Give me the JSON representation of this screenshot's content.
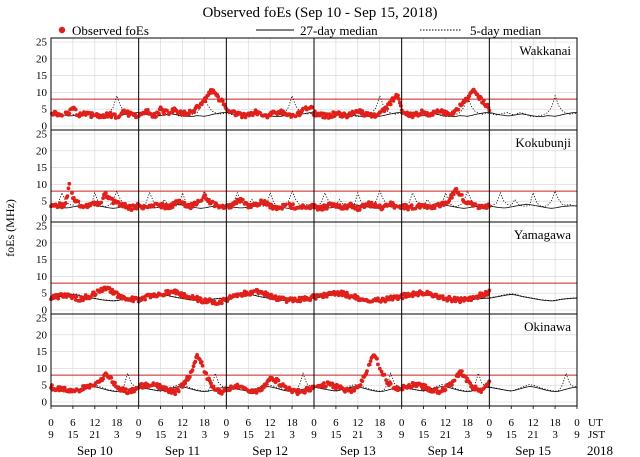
{
  "chart_data": {
    "type": "scatter",
    "title": "Observed foEs (Sep 10 - Sep 15, 2018)",
    "ylabel": "foEs (MHz)",
    "legend": {
      "placement": "top",
      "observed": "Observed foEs",
      "median27": "27-day median",
      "median5": "5-day median"
    },
    "ylim": [
      0,
      25
    ],
    "yticks": [
      "0",
      "5",
      "10",
      "15",
      "20",
      "25"
    ],
    "reference_line_mhz": 8,
    "colors": {
      "observed": "#e0201b",
      "reference": "#cc2222",
      "median": "#000000"
    },
    "x_axis": {
      "ut_label": "UT",
      "jst_label": "JST",
      "ut_ticks": [
        "0",
        "6",
        "12",
        "18",
        "0",
        "6",
        "12",
        "18",
        "0",
        "6",
        "12",
        "18",
        "0",
        "6",
        "12",
        "18",
        "0",
        "6",
        "12",
        "18",
        "0",
        "6",
        "12",
        "18",
        "0"
      ],
      "jst_ticks": [
        "9",
        "15",
        "21",
        "3",
        "9",
        "15",
        "21",
        "3",
        "9",
        "15",
        "21",
        "3",
        "9",
        "15",
        "21",
        "3",
        "9",
        "15",
        "21",
        "3",
        "9",
        "15",
        "21",
        "3",
        "9"
      ],
      "days": [
        "Sep 10",
        "Sep 11",
        "Sep 12",
        "Sep 13",
        "Sep 14",
        "Sep 15"
      ],
      "year": "2018",
      "day_boundaries_hours": [
        0,
        24,
        48,
        72,
        96,
        120,
        144
      ]
    },
    "stations": [
      {
        "name": "Wakkanai",
        "series_hourly_observed": [
          4.2,
          3.8,
          3.5,
          3.2,
          3.6,
          4.0,
          5.5,
          3.9,
          3.2,
          4.1,
          3.6,
          3.3,
          3.0,
          2.8,
          2.9,
          3.2,
          3.4,
          3.0,
          2.8,
          3.5,
          4.0,
          3.8,
          3.2,
          2.9,
          3.1,
          3.3,
          4.5,
          3.8,
          3.2,
          3.5,
          5.0,
          4.2,
          3.8,
          4.5,
          5.0,
          4.0,
          3.5,
          3.8,
          4.2,
          3.9,
          5.5,
          6.5,
          7.5,
          9.0,
          10.5,
          9.5,
          8.0,
          7.0,
          4.5,
          4.0,
          3.8,
          3.5,
          3.3,
          3.0,
          3.2,
          3.8,
          4.0,
          3.5,
          3.3,
          3.0,
          3.4,
          3.8,
          4.2,
          4.0,
          3.6,
          3.2,
          3.0,
          3.4,
          3.8,
          4.5,
          5.5,
          6.0,
          3.8,
          3.5,
          3.2,
          3.0,
          2.8,
          3.3,
          3.9,
          3.6,
          3.3,
          3.0,
          3.5,
          4.0,
          4.4,
          4.0,
          3.5,
          3.2,
          3.0,
          3.4,
          3.9,
          4.5,
          5.5,
          7.0,
          8.5,
          9.5,
          4.0,
          3.5,
          3.2,
          3.0,
          3.4,
          3.8,
          4.2,
          3.5,
          3.3,
          4.0,
          4.5,
          4.2,
          3.8,
          3.5,
          4.0,
          5.0,
          6.0,
          7.0,
          8.0,
          9.5,
          10.5,
          9.0,
          7.5,
          6.5,
          5.0
        ],
        "series_27day_median": [
          4.0,
          3.8,
          3.5,
          3.3,
          3.2,
          3.0,
          3.1,
          3.3,
          3.5,
          3.6,
          3.4,
          3.2,
          3.0,
          2.9,
          2.8,
          2.9,
          3.1,
          3.0,
          2.9,
          3.1,
          3.4,
          3.6,
          3.8,
          4.0
        ],
        "series_5day_median": [
          3.8,
          3.5,
          3.3,
          3.6,
          3.8,
          4.0,
          3.5,
          3.2,
          4.0,
          3.8,
          3.5,
          3.0,
          2.8,
          2.9,
          3.1,
          3.5,
          4.0,
          5.5,
          9.0,
          6.0,
          4.5,
          3.9,
          3.5,
          3.7
        ]
      },
      {
        "name": "Kokubunji",
        "series_hourly_observed": [
          3.8,
          3.5,
          3.6,
          3.8,
          4.2,
          9.5,
          6.0,
          4.5,
          4.0,
          3.6,
          3.3,
          3.8,
          4.5,
          4.2,
          5.5,
          7.0,
          6.0,
          5.0,
          4.4,
          4.0,
          3.6,
          3.3,
          3.0,
          3.4,
          3.6,
          3.3,
          3.0,
          3.4,
          3.8,
          4.2,
          3.9,
          3.5,
          3.3,
          3.7,
          4.5,
          5.0,
          4.2,
          3.8,
          3.5,
          3.8,
          4.5,
          5.5,
          6.5,
          5.0,
          4.3,
          3.9,
          3.6,
          3.4,
          3.3,
          3.6,
          4.2,
          5.0,
          5.5,
          4.5,
          3.8,
          3.6,
          3.9,
          4.5,
          5.0,
          4.0,
          3.5,
          3.3,
          3.0,
          3.2,
          3.6,
          4.0,
          3.5,
          3.2,
          3.0,
          3.4,
          3.7,
          3.5,
          3.4,
          3.1,
          3.0,
          3.3,
          3.6,
          3.8,
          3.5,
          3.2,
          3.0,
          3.4,
          3.7,
          3.3,
          3.0,
          3.2,
          3.8,
          4.2,
          3.8,
          3.5,
          3.2,
          3.0,
          3.5,
          4.0,
          3.6,
          3.3,
          3.5,
          3.3,
          3.0,
          3.2,
          3.5,
          3.7,
          3.4,
          3.1,
          3.3,
          3.6,
          3.9,
          4.2,
          4.6,
          5.5,
          7.0,
          8.5,
          7.0,
          5.5,
          4.5,
          4.0,
          3.6,
          3.3,
          3.0,
          3.2,
          3.5
        ],
        "series_27day_median": [
          3.6,
          3.4,
          3.2,
          3.1,
          3.0,
          3.1,
          3.3,
          3.5,
          3.7,
          3.9,
          4.1,
          4.0,
          3.8,
          3.6,
          3.4,
          3.2,
          3.0,
          2.9,
          3.0,
          3.2,
          3.4,
          3.5,
          3.6,
          3.6
        ],
        "series_5day_median": [
          3.5,
          3.8,
          4.5,
          7.5,
          5.0,
          4.0,
          3.8,
          5.5,
          4.0,
          3.6,
          3.5,
          3.8,
          7.5,
          4.5,
          3.6,
          3.4,
          3.8,
          5.0,
          8.0,
          5.5,
          4.0,
          3.8,
          4.0,
          3.7
        ]
      },
      {
        "name": "Yamagawa",
        "series_hourly_observed": [
          3.5,
          3.8,
          4.0,
          4.2,
          4.4,
          4.1,
          3.8,
          3.5,
          3.3,
          3.6,
          4.0,
          4.3,
          4.8,
          5.5,
          6.0,
          6.5,
          6.0,
          5.2,
          4.6,
          4.2,
          3.8,
          3.5,
          3.2,
          3.0,
          3.2,
          3.5,
          3.8,
          4.0,
          4.2,
          4.5,
          4.7,
          5.0,
          5.3,
          5.6,
          5.4,
          5.0,
          4.6,
          4.2,
          3.9,
          3.6,
          3.3,
          3.0,
          2.8,
          2.6,
          2.5,
          2.4,
          2.5,
          2.8,
          3.2,
          3.6,
          4.0,
          4.3,
          4.6,
          4.9,
          5.1,
          5.3,
          5.5,
          5.2,
          4.9,
          4.5,
          4.1,
          3.8,
          3.5,
          3.2,
          3.0,
          2.9,
          2.8,
          2.9,
          3.0,
          3.2,
          3.4,
          3.6,
          3.8,
          4.0,
          4.2,
          4.4,
          4.7,
          5.0,
          5.2,
          5.0,
          4.8,
          4.5,
          4.2,
          3.9,
          3.6,
          3.3,
          3.1,
          3.0,
          2.9,
          2.8,
          2.9,
          3.1,
          3.3,
          3.5,
          3.7,
          3.9,
          4.1,
          4.3,
          4.5,
          4.7,
          4.9,
          5.1,
          5.0,
          4.8,
          4.6,
          4.3,
          4.0,
          3.8,
          3.5,
          3.3,
          3.1,
          3.0,
          3.0,
          3.1,
          3.3,
          3.5,
          3.8,
          4.1,
          4.5,
          5.0,
          5.5
        ],
        "series_27day_median": [
          3.5,
          3.7,
          3.9,
          4.1,
          4.3,
          4.5,
          4.6,
          4.5,
          4.3,
          4.0,
          3.8,
          3.6,
          3.4,
          3.2,
          3.0,
          2.9,
          2.8,
          2.7,
          2.8,
          3.0,
          3.2,
          3.3,
          3.4,
          3.5
        ],
        "series_5day_median": [
          3.6,
          3.8,
          4.0,
          4.3,
          4.5,
          4.7,
          4.8,
          4.7,
          4.4,
          4.1,
          3.9,
          3.7,
          3.5,
          3.3,
          3.1,
          3.0,
          2.9,
          2.8,
          2.9,
          3.1,
          3.3,
          3.4,
          3.5,
          3.6
        ]
      },
      {
        "name": "Okinawa",
        "series_hourly_observed": [
          4.5,
          4.2,
          4.0,
          3.8,
          3.5,
          3.2,
          3.0,
          3.4,
          3.8,
          4.2,
          4.6,
          5.0,
          5.5,
          6.0,
          7.0,
          8.5,
          7.5,
          6.0,
          4.8,
          4.0,
          3.5,
          3.2,
          3.0,
          4.0,
          4.5,
          4.8,
          5.0,
          5.3,
          5.5,
          5.0,
          4.5,
          4.0,
          3.6,
          3.3,
          3.0,
          3.8,
          5.0,
          6.5,
          8.0,
          10.0,
          14.0,
          12.0,
          9.0,
          7.0,
          5.0,
          4.0,
          3.4,
          3.0,
          3.8,
          4.2,
          4.5,
          4.8,
          4.4,
          4.0,
          3.6,
          3.3,
          3.0,
          3.5,
          4.5,
          5.5,
          6.5,
          7.0,
          6.0,
          5.0,
          4.2,
          3.8,
          3.4,
          3.1,
          2.9,
          3.2,
          3.6,
          4.0,
          4.3,
          4.6,
          4.9,
          5.2,
          5.5,
          5.0,
          4.6,
          4.2,
          3.8,
          3.5,
          3.2,
          3.6,
          4.5,
          6.0,
          8.0,
          11.0,
          14.0,
          13.0,
          10.0,
          8.0,
          6.0,
          5.0,
          4.2,
          3.6,
          4.0,
          4.4,
          4.8,
          5.0,
          5.3,
          4.9,
          4.5,
          4.1,
          3.7,
          3.4,
          3.1,
          3.5,
          4.2,
          5.0,
          6.0,
          7.5,
          9.0,
          8.0,
          6.5,
          5.0,
          4.2,
          3.8,
          3.5,
          4.5,
          5.5
        ],
        "series_27day_median": [
          4.4,
          4.2,
          4.0,
          3.8,
          3.6,
          3.4,
          3.3,
          3.5,
          3.8,
          4.1,
          4.4,
          4.6,
          4.5,
          4.3,
          4.0,
          3.7,
          3.4,
          3.2,
          3.1,
          3.2,
          3.5,
          3.8,
          4.1,
          4.3
        ],
        "series_5day_median": [
          4.5,
          4.3,
          4.1,
          3.9,
          3.6,
          3.4,
          3.2,
          3.6,
          4.0,
          4.4,
          4.8,
          5.2,
          5.0,
          4.7,
          4.3,
          3.9,
          3.6,
          3.4,
          3.2,
          3.4,
          5.0,
          8.5,
          5.5,
          4.6
        ]
      }
    ]
  }
}
